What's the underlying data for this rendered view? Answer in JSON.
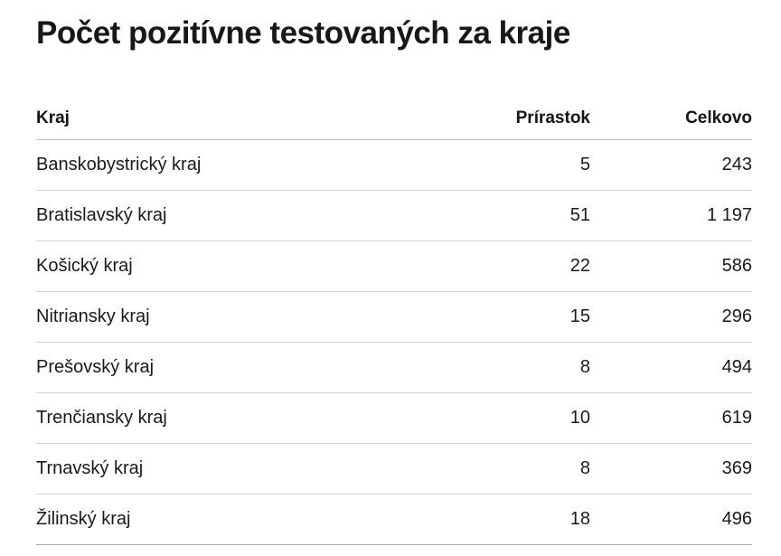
{
  "page": {
    "title": "Počet pozitívne testovaných za kraje"
  },
  "table": {
    "columns": [
      {
        "key": "kraj",
        "label": "Kraj",
        "align": "left"
      },
      {
        "key": "prirastok",
        "label": "Prírastok",
        "align": "right"
      },
      {
        "key": "celkovo",
        "label": "Celkovo",
        "align": "right"
      }
    ],
    "rows": [
      {
        "kraj": "Banskobystrický kraj",
        "prirastok": "5",
        "celkovo": "243"
      },
      {
        "kraj": "Bratislavský kraj",
        "prirastok": "51",
        "celkovo": "1 197"
      },
      {
        "kraj": "Košický kraj",
        "prirastok": "22",
        "celkovo": "586"
      },
      {
        "kraj": "Nitriansky kraj",
        "prirastok": "15",
        "celkovo": "296"
      },
      {
        "kraj": "Prešovský kraj",
        "prirastok": "8",
        "celkovo": "494"
      },
      {
        "kraj": "Trenčiansky kraj",
        "prirastok": "10",
        "celkovo": "619"
      },
      {
        "kraj": "Trnavský kraj",
        "prirastok": "8",
        "celkovo": "369"
      },
      {
        "kraj": "Žilinský kraj",
        "prirastok": "18",
        "celkovo": "496"
      }
    ]
  },
  "colors": {
    "title_text": "#181818",
    "body_text": "#1a1a1a",
    "header_rule": "#c2c2c2",
    "row_rule": "#d2d2d2",
    "bottom_rule": "#aaaaaa",
    "background": "#ffffff"
  },
  "chart_data": {
    "type": "table",
    "title": "Počet pozitívne testovaných za kraje",
    "columns": [
      "Kraj",
      "Prírastok",
      "Celkovo"
    ],
    "rows": [
      [
        "Banskobystrický kraj",
        5,
        243
      ],
      [
        "Bratislavský kraj",
        51,
        1197
      ],
      [
        "Košický kraj",
        22,
        586
      ],
      [
        "Nitriansky kraj",
        15,
        296
      ],
      [
        "Prešovský kraj",
        8,
        494
      ],
      [
        "Trenčiansky kraj",
        10,
        619
      ],
      [
        "Trnavský kraj",
        8,
        369
      ],
      [
        "Žilinský kraj",
        18,
        496
      ]
    ],
    "layout": {
      "numeric_columns_right_aligned": true,
      "thousands_separator": "space",
      "gridlines": "horizontal-only"
    }
  }
}
